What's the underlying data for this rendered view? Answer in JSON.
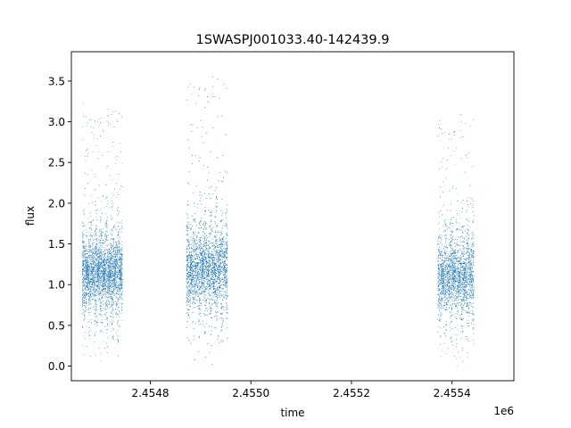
{
  "chart_data": {
    "type": "scatter",
    "title": "1SWASPJ001033.40-142439.9",
    "xlabel": "time",
    "ylabel": "flux",
    "x_offset_label": "1e6",
    "xlim": [
      2454643.0,
      2455523.0
    ],
    "ylim": [
      -0.18,
      3.86
    ],
    "xticks": [
      2454800,
      2455000,
      2455200,
      2455400
    ],
    "xtick_labels": [
      "2.4548",
      "2.4550",
      "2.4552",
      "2.4554"
    ],
    "yticks": [
      0.0,
      0.5,
      1.0,
      1.5,
      2.0,
      2.5,
      3.0,
      3.5
    ],
    "ytick_labels": [
      "0.0",
      "0.5",
      "1.0",
      "1.5",
      "2.0",
      "2.5",
      "3.0",
      "3.5"
    ],
    "grid": false,
    "marker_color": "#1f77b4",
    "series": [
      {
        "clusters": [
          {
            "x_range": [
              2454664,
              2454744
            ],
            "y_center": 1.15,
            "y_spread": 0.32,
            "y_max": 3.25,
            "y_min": 0.05,
            "points": 4200
          },
          {
            "x_range": [
              2454871,
              2454953
            ],
            "y_center": 1.2,
            "y_spread": 0.35,
            "y_max": 3.65,
            "y_min": 0.0,
            "points": 4600
          },
          {
            "x_range": [
              2455371,
              2455443
            ],
            "y_center": 1.1,
            "y_spread": 0.33,
            "y_max": 3.1,
            "y_min": 0.0,
            "points": 3300
          }
        ]
      }
    ]
  }
}
